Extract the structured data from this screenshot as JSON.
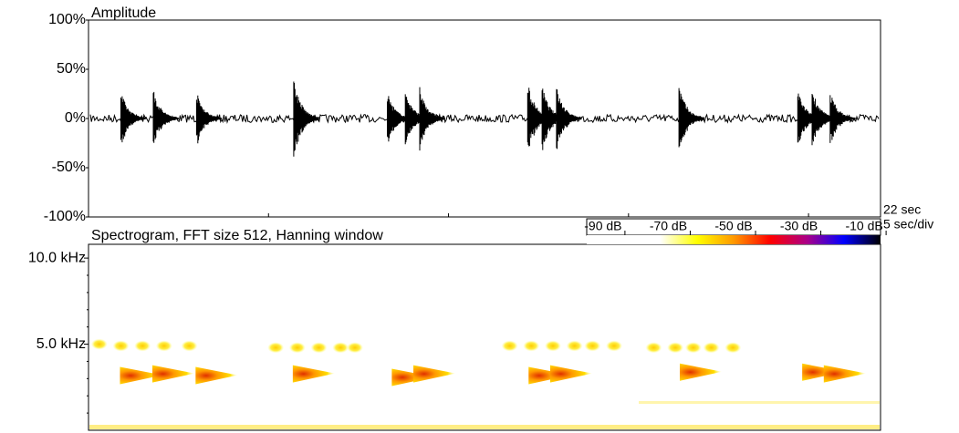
{
  "chart_data": [
    {
      "type": "waveform",
      "title": "Amplitude",
      "xlim": [
        0,
        22
      ],
      "xticks": [
        5,
        10,
        15,
        20
      ],
      "x_end_label": "22 sec",
      "x_division_label": "5 sec/div",
      "ylim": [
        -100,
        100
      ],
      "yticks": [
        {
          "value": 100,
          "label": "100%"
        },
        {
          "value": 50,
          "label": "50%"
        },
        {
          "value": 0,
          "label": "0%"
        },
        {
          "value": -50,
          "label": "-50%"
        },
        {
          "value": -100,
          "label": "-100%"
        }
      ],
      "noise_level": 4,
      "color": "#000000",
      "x": [
        0.9,
        1.8,
        3.0,
        5.7,
        8.3,
        8.8,
        9.2,
        12.2,
        12.6,
        13.0,
        16.4,
        19.7,
        20.1,
        20.6
      ],
      "values": [
        28,
        30,
        28,
        42,
        28,
        30,
        32,
        38,
        34,
        33,
        35,
        30,
        32,
        28
      ]
    },
    {
      "type": "spectrogram",
      "title": "Spectrogram, FFT size 512, Hanning window",
      "xlim": [
        0,
        22
      ],
      "ylim": [
        0,
        10.8
      ],
      "yticks": [
        {
          "value": 10,
          "label": "10.0 kHz"
        },
        {
          "value": 5,
          "label": "5.0 kHz"
        }
      ],
      "yminor": [
        1,
        2,
        3,
        4,
        6,
        7,
        8,
        9
      ],
      "clim": [
        -95,
        -5
      ],
      "cticks": [
        {
          "value": -90,
          "label": "-90 dB"
        },
        {
          "value": -70,
          "label": "-70 dB"
        },
        {
          "value": -50,
          "label": "-50 dB"
        },
        {
          "value": -30,
          "label": "-30 dB"
        },
        {
          "value": -10,
          "label": "-10 dB"
        }
      ],
      "colormap": [
        "#ffffff",
        "#ffffff",
        "#ffffff",
        "#ffff00",
        "#ff9900",
        "#ff0000",
        "#aa0088",
        "#0000ff",
        "#000000"
      ],
      "series": [
        {
          "kind": "call",
          "x": [
            0.95,
            1.85,
            3.05,
            5.75,
            8.5,
            9.1,
            12.3,
            12.9,
            16.5,
            19.9,
            20.5
          ],
          "values": [
            3.2,
            3.3,
            3.2,
            3.3,
            3.1,
            3.3,
            3.2,
            3.3,
            3.4,
            3.4,
            3.3
          ]
        },
        {
          "kind": "harmonic",
          "x": [
            0.3,
            0.9,
            1.5,
            2.1,
            2.8,
            5.2,
            5.8,
            6.4,
            7.0,
            7.4,
            11.7,
            12.3,
            12.9,
            13.5,
            14.0,
            14.6,
            15.7,
            16.3,
            16.8,
            17.3,
            17.9
          ],
          "values": [
            5.0,
            4.9,
            4.9,
            4.9,
            4.9,
            4.8,
            4.8,
            4.8,
            4.8,
            4.8,
            4.9,
            4.9,
            4.9,
            4.9,
            4.9,
            4.9,
            4.8,
            4.8,
            4.8,
            4.8,
            4.8
          ]
        }
      ]
    }
  ]
}
